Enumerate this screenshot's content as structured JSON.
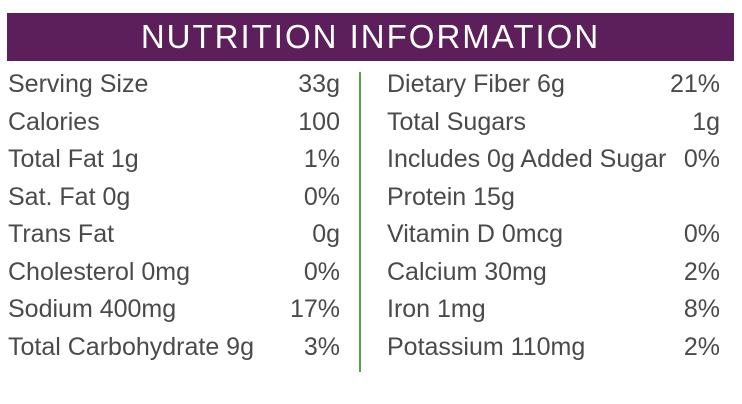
{
  "title": "NUTRITION INFORMATION",
  "colors": {
    "banner_background": "#5c1f5b",
    "banner_text": "#ffffff",
    "body_text": "#4a4a4a",
    "divider": "#5aa33a"
  },
  "left_column": [
    {
      "label": "Serving Size",
      "value": "33g"
    },
    {
      "label": "Calories",
      "value": "100"
    },
    {
      "label": "Total Fat 1g",
      "value": "1%"
    },
    {
      "label": "Sat. Fat 0g",
      "value": "0%"
    },
    {
      "label": "Trans Fat",
      "value": "0g"
    },
    {
      "label": "Cholesterol 0mg",
      "value": "0%"
    },
    {
      "label": "Sodium 400mg",
      "value": "17%"
    },
    {
      "label": "Total Carbohydrate 9g",
      "value": "3%"
    }
  ],
  "right_column": [
    {
      "label": "Dietary Fiber 6g",
      "value": "21%"
    },
    {
      "label": "Total Sugars",
      "value": "1g"
    },
    {
      "label": "Includes 0g Added Sugar",
      "value": "0%"
    },
    {
      "label": "Protein 15g",
      "value": ""
    },
    {
      "label": "Vitamin D 0mcg",
      "value": "0%"
    },
    {
      "label": "Calcium 30mg",
      "value": "2%"
    },
    {
      "label": "Iron 1mg",
      "value": "8%"
    },
    {
      "label": "Potassium 110mg",
      "value": "2%"
    }
  ]
}
